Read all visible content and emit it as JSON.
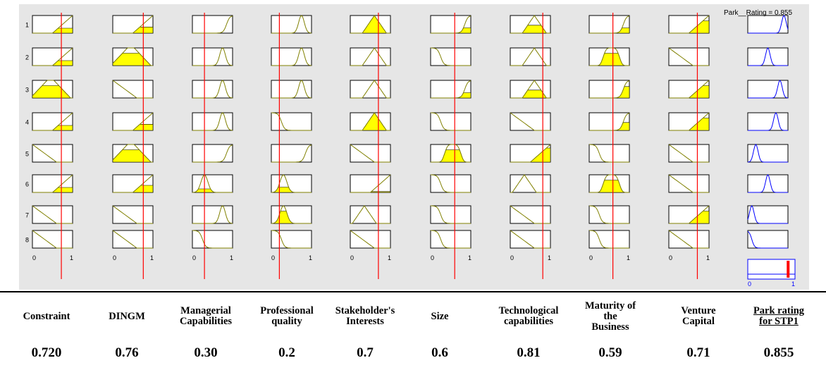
{
  "viewer": {
    "output_readout": "Park__Rating = 0.855",
    "rule_numbers": [
      "1",
      "2",
      "3",
      "4",
      "5",
      "6",
      "7",
      "8"
    ],
    "axis_min": "0",
    "axis_max": "1",
    "input_values": [
      0.72,
      0.76,
      0.3,
      0.2,
      0.7,
      0.6,
      0.81,
      0.59,
      0.71
    ],
    "output_value": 0.855,
    "colors": {
      "background": "#e6e6e6",
      "membership": "#808000",
      "fill": "#ffff00",
      "cursor": "#ff0000",
      "output": "#0000ff"
    }
  },
  "variables": [
    {
      "label_lines": [
        "Constraint"
      ],
      "value": "0.720"
    },
    {
      "label_lines": [
        "DINGM"
      ],
      "value": "0.76"
    },
    {
      "label_lines": [
        "Managerial",
        "Capabilities"
      ],
      "value": "0.30"
    },
    {
      "label_lines": [
        "Professional",
        "quality"
      ],
      "value": "0.2"
    },
    {
      "label_lines": [
        "Stakeholder's",
        "Interests"
      ],
      "value": "0.7"
    },
    {
      "label_lines": [
        "Size"
      ],
      "value": "0.6"
    },
    {
      "label_lines": [
        "Technological",
        "capabilities"
      ],
      "value": "0.81"
    },
    {
      "label_lines": [
        "Maturity of",
        "the",
        "Business"
      ],
      "value": "0.59"
    },
    {
      "label_lines": [
        "Venture",
        "Capital"
      ],
      "value": "0.71"
    }
  ],
  "output_variable": {
    "label_lines": [
      "Park rating",
      "for STP1"
    ],
    "value": "0.855"
  },
  "rules": [
    [
      "tri-right",
      "tri-right",
      "s-right",
      "bell-right",
      "triangle",
      "s-right",
      "triangle",
      "s-right",
      "tri-right",
      "out-9"
    ],
    [
      "tri-right",
      "trapezoid",
      "bell-right",
      "bell-right",
      "triangle",
      "z-left",
      "triangle",
      "bell-wide",
      "z-line",
      "out-5"
    ],
    [
      "trapezoid",
      "z-line",
      "bell-right",
      "bell-right",
      "triangle",
      "s-right",
      "triangle",
      "s-right",
      "tri-right",
      "out-8"
    ],
    [
      "tri-right",
      "tri-right",
      "bell-right",
      "z-left",
      "triangle",
      "z-left",
      "z-line",
      "s-right",
      "tri-right",
      "out-7"
    ],
    [
      "z-line",
      "trapezoid",
      "s-right",
      "s-right",
      "z-line",
      "bell-wide",
      "tri-right",
      "z-left",
      "z-line",
      "out-2"
    ],
    [
      "tri-right",
      "tri-right",
      "bell-left",
      "bell-left",
      "tri-right",
      "z-left",
      "triangle-left",
      "bell-wide",
      "z-line",
      "out-5"
    ],
    [
      "z-line",
      "z-line",
      "bell-right",
      "bell-left",
      "triangle-left",
      "z-left",
      "z-line",
      "z-left",
      "tri-right",
      "out-1"
    ],
    [
      "z-line",
      "z-line",
      "z-left",
      "z-left",
      "z-line",
      "z-left",
      "z-line",
      "z-left",
      "z-line",
      "z-out"
    ]
  ],
  "fills": [
    [
      0.28,
      0.35,
      0,
      0,
      1,
      0.3,
      0.45,
      0.3,
      0.7,
      0
    ],
    [
      0.28,
      0.7,
      0,
      0,
      0,
      0,
      0,
      0.7,
      0,
      0
    ],
    [
      0.7,
      0,
      0,
      0,
      0,
      0.3,
      0.45,
      0.65,
      0.7,
      0
    ],
    [
      0.28,
      0.35,
      0,
      0,
      1,
      0,
      0,
      0.45,
      0.7,
      0
    ],
    [
      0,
      0.7,
      0,
      0,
      0,
      0.7,
      0.8,
      0,
      0,
      0
    ],
    [
      0.28,
      0.4,
      0.2,
      0.3,
      0.05,
      0,
      0,
      0.7,
      0,
      0
    ],
    [
      0,
      0,
      0,
      0.7,
      0,
      0,
      0,
      0,
      0.7,
      0
    ],
    [
      0,
      0,
      0,
      0,
      0,
      0,
      0,
      0,
      0,
      0
    ]
  ]
}
